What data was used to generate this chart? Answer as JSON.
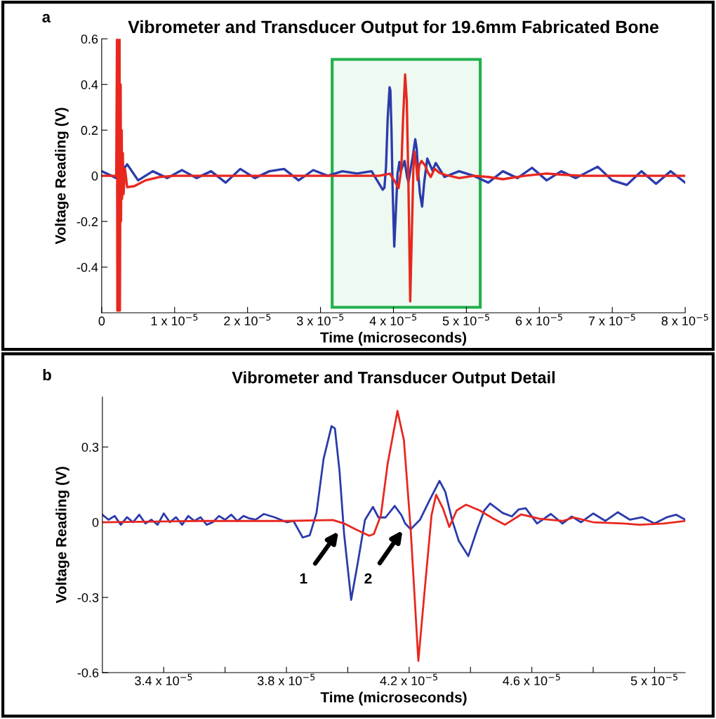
{
  "chart_data": [
    {
      "type": "line",
      "title": "Vibrometer and Transducer Output for 19.6mm Fabricated Bone",
      "xlabel": "Time (microseconds)",
      "ylabel": "Voltage Reading (V)",
      "xlim": [
        0,
        8e-05
      ],
      "ylim": [
        -0.6,
        0.6
      ],
      "xticks": [
        0,
        {
          "value": 1e-05,
          "label": "1 x 10$^{−5}$"
        },
        {
          "value": 2e-05,
          "label": "2 x 10$^{−5}$"
        },
        {
          "value": 3e-05,
          "label": "3 x 10$^{−5}$"
        },
        {
          "value": 4e-05,
          "label": "4 x 10$^{−5}$"
        },
        {
          "value": 5e-05,
          "label": "5 x 10$^{−5}$"
        },
        {
          "value": 6e-05,
          "label": "6 x 10$^{−5}$"
        },
        {
          "value": 7e-05,
          "label": "7 x 10$^{−5}$"
        },
        {
          "value": 8e-05,
          "label": "8 x 10$^{−5}$"
        }
      ],
      "yticks": [
        -0.4,
        -0.2,
        0,
        0.2,
        0.4,
        0.6
      ],
      "series": [
        {
          "color": "#2b3bab",
          "x": [
            0,
            2e-06,
            3.5e-06,
            5e-06,
            7e-06,
            9e-06,
            1.1e-05,
            1.3e-05,
            1.5e-05,
            1.7e-05,
            1.9e-05,
            2.1e-05,
            2.3e-05,
            2.5e-05,
            2.7e-05,
            2.9e-05,
            3.1e-05,
            3.3e-05,
            3.5e-05,
            3.7e-05,
            3.853e-05,
            3.876e-05,
            3.898e-05,
            3.921e-05,
            3.947e-05,
            3.958e-05,
            3.973e-05,
            3.988e-05,
            4.011e-05,
            4.033e-05,
            4.056e-05,
            4.082e-05,
            4.1e-05,
            4.153e-05,
            4.187e-05,
            4.205e-05,
            4.265e-05,
            4.299e-05,
            4.318e-05,
            4.34e-05,
            4.362e-05,
            4.393e-05,
            4.422e-05,
            4.464e-05,
            4.535e-05,
            4.58e-05,
            4.7e-05,
            4.9e-05,
            5.1e-05,
            5.3e-05,
            5.5e-05,
            5.7e-05,
            5.9e-05,
            6.1e-05,
            6.3e-05,
            6.5e-05,
            6.8e-05,
            7e-05,
            7.2e-05,
            7.4e-05,
            7.6e-05,
            7.8e-05,
            8e-05
          ],
          "values": [
            0.02,
            -0.01,
            0.05,
            -0.02,
            0.02,
            -0.01,
            0.025,
            -0.01,
            0.02,
            -0.03,
            0.03,
            -0.01,
            0.02,
            0.03,
            -0.02,
            0.025,
            0.0,
            0.02,
            0.01,
            0.02,
            -0.061,
            -0.052,
            0.037,
            0.252,
            0.388,
            0.374,
            0.205,
            -0.047,
            -0.31,
            -0.159,
            0.009,
            0.061,
            0.019,
            0.065,
            -0.005,
            -0.028,
            0.084,
            0.16,
            0.121,
            0.009,
            -0.075,
            -0.135,
            -0.028,
            0.075,
            0.023,
            0.056,
            -0.005,
            0.02,
            0.0,
            -0.03,
            0.02,
            -0.01,
            0.035,
            -0.02,
            0.02,
            -0.01,
            0.04,
            -0.02,
            -0.04,
            0.02,
            -0.035,
            0.02,
            -0.03
          ]
        },
        {
          "color": "#e8271f",
          "x": [
            0,
            2e-06,
            2.1e-06,
            2.15e-06,
            2.2e-06,
            2.25e-06,
            2.3e-06,
            2.35e-06,
            2.45e-06,
            2.5e-06,
            2.6e-06,
            2.65e-06,
            2.75e-06,
            2.8e-06,
            2.9e-06,
            3e-06,
            3.2e-06,
            3.5e-06,
            4.5e-06,
            6e-06,
            8e-06,
            1e-05,
            3.8e-05,
            3.951e-05,
            4.025e-05,
            4.07e-05,
            4.108e-05,
            4.13e-05,
            4.16e-05,
            4.183e-05,
            4.205e-05,
            4.23e-05,
            4.25e-05,
            4.273e-05,
            4.288e-05,
            4.31e-05,
            4.331e-05,
            4.355e-05,
            4.385e-05,
            4.43e-05,
            4.475e-05,
            4.512e-05,
            4.565e-05,
            4.625e-05,
            4.7e-05,
            4.9e-05,
            5.1e-05,
            5.3e-05,
            5.5e-05,
            5.8e-05,
            6.1e-05,
            6.3e-05,
            6.6e-05,
            7e-05,
            8e-05
          ],
          "values": [
            0,
            0,
            0.6,
            -0.59,
            0.6,
            -0.59,
            0.6,
            -0.59,
            0.6,
            -0.59,
            0.4,
            -0.2,
            0.2,
            -0.1,
            0.1,
            -0.08,
            0.03,
            -0.05,
            -0.045,
            -0.02,
            -0.005,
            0,
            0,
            0.009,
            -0.028,
            -0.054,
            0.028,
            0.234,
            0.444,
            0.327,
            -0.028,
            -0.55,
            -0.28,
            0.028,
            0.105,
            0.056,
            -0.019,
            0.047,
            0.065,
            0.047,
            0.014,
            -0.005,
            0.031,
            0.014,
            0.005,
            -0.01,
            0.0,
            -0.005,
            -0.015,
            0.0,
            0.01,
            0.005,
            0.0,
            0.0,
            0.0
          ]
        }
      ],
      "bands": [
        {
          "axis": "x",
          "from": 3.16e-05,
          "to": 5.19e-05,
          "color": "#22b14c"
        }
      ],
      "annotations": [
        "a"
      ]
    },
    {
      "type": "line",
      "title": "Vibrometer and Transducer Output Detail",
      "xlabel": "Time (microseconds)",
      "ylabel": "Voltage Reading (V)",
      "xlim": [
        3.2e-05,
        5.1e-05
      ],
      "ylim": [
        -0.6,
        0.5
      ],
      "xticks": [
        {
          "value": 3.4e-05,
          "label": "3.4 x 10$^{−5}$"
        },
        {
          "value": 3.6e-05,
          "label": null
        },
        {
          "value": 3.8e-05,
          "label": "3.8 x 10$^{−5}$"
        },
        {
          "value": 4e-05,
          "label": null
        },
        {
          "value": 4.2e-05,
          "label": "4.2 x 10$^{−5}$"
        },
        {
          "value": 4.4e-05,
          "label": null
        },
        {
          "value": 4.6e-05,
          "label": "4.6 x 10$^{−5}$"
        },
        {
          "value": 4.8e-05,
          "label": null
        },
        {
          "value": 5e-05,
          "label": "5 x 10$^{−5}$"
        }
      ],
      "yticks": [
        -0.6,
        -0.3,
        0,
        0.3
      ],
      "series": [
        {
          "color": "#2b3bab",
          "x": [
            3.2e-05,
            3.22e-05,
            3.24e-05,
            3.26e-05,
            3.28e-05,
            3.3e-05,
            3.32e-05,
            3.34e-05,
            3.36e-05,
            3.38e-05,
            3.4e-05,
            3.42e-05,
            3.44e-05,
            3.46e-05,
            3.48e-05,
            3.5e-05,
            3.52e-05,
            3.54e-05,
            3.56e-05,
            3.58e-05,
            3.6e-05,
            3.62e-05,
            3.64e-05,
            3.66e-05,
            3.68e-05,
            3.7e-05,
            3.726e-05,
            3.763e-05,
            3.801e-05,
            3.823e-05,
            3.853e-05,
            3.876e-05,
            3.898e-05,
            3.921e-05,
            3.947e-05,
            3.958e-05,
            3.973e-05,
            3.988e-05,
            4.011e-05,
            4.033e-05,
            4.056e-05,
            4.082e-05,
            4.1e-05,
            4.123e-05,
            4.153e-05,
            4.175e-05,
            4.187e-05,
            4.205e-05,
            4.235e-05,
            4.265e-05,
            4.299e-05,
            4.318e-05,
            4.34e-05,
            4.362e-05,
            4.393e-05,
            4.422e-05,
            4.445e-05,
            4.464e-05,
            4.505e-05,
            4.535e-05,
            4.557e-05,
            4.58e-05,
            4.617e-05,
            4.662e-05,
            4.7e-05,
            4.73e-05,
            4.76e-05,
            4.8e-05,
            4.84e-05,
            4.88e-05,
            4.92e-05,
            4.96e-05,
            5e-05,
            5.04e-05,
            5.07e-05,
            5.1e-05
          ],
          "values": [
            0.03,
            0.01,
            0.025,
            -0.01,
            0.02,
            0.0,
            0.03,
            -0.005,
            0.01,
            -0.01,
            0.035,
            0.0,
            0.02,
            -0.01,
            0.025,
            0.005,
            0.02,
            -0.01,
            0.0,
            0.025,
            0.01,
            0.03,
            0.005,
            0.025,
            0.015,
            0.01,
            0.033,
            0.019,
            0.0,
            0.005,
            -0.061,
            -0.052,
            0.037,
            0.252,
            0.383,
            0.374,
            0.205,
            -0.047,
            -0.31,
            -0.159,
            0.009,
            0.061,
            0.019,
            0.019,
            0.065,
            0.028,
            -0.005,
            -0.028,
            0.009,
            0.084,
            0.165,
            0.121,
            0.009,
            -0.075,
            -0.135,
            -0.028,
            0.047,
            0.075,
            0.037,
            0.023,
            0.051,
            0.056,
            -0.005,
            0.033,
            -0.005,
            0.023,
            0.0,
            0.035,
            0.005,
            0.04,
            0.01,
            0.02,
            -0.005,
            0.02,
            0.03,
            0.01
          ]
        },
        {
          "color": "#e8271f",
          "x": [
            3.2e-05,
            3.5e-05,
            3.8e-05,
            3.951e-05,
            3.988e-05,
            4.025e-05,
            4.07e-05,
            4.085e-05,
            4.108e-05,
            4.13e-05,
            4.162e-05,
            4.183e-05,
            4.205e-05,
            4.23e-05,
            4.25e-05,
            4.273e-05,
            4.288e-05,
            4.31e-05,
            4.331e-05,
            4.355e-05,
            4.385e-05,
            4.43e-05,
            4.475e-05,
            4.512e-05,
            4.565e-05,
            4.625e-05,
            4.7e-05,
            4.737e-05,
            4.8e-05,
            4.9e-05,
            4.95e-05,
            5.03e-05,
            5.1e-05
          ],
          "values": [
            0.0,
            0.005,
            0.005,
            0.009,
            -0.005,
            -0.028,
            -0.054,
            -0.047,
            0.028,
            0.234,
            0.444,
            0.327,
            -0.028,
            -0.553,
            -0.28,
            0.028,
            0.11,
            0.056,
            -0.019,
            0.047,
            0.07,
            0.047,
            0.014,
            -0.01,
            0.031,
            0.014,
            0.005,
            0.019,
            0.0,
            -0.005,
            -0.01,
            -0.005,
            0.005
          ]
        }
      ],
      "annotations": [
        "b",
        "1",
        "2"
      ]
    }
  ]
}
